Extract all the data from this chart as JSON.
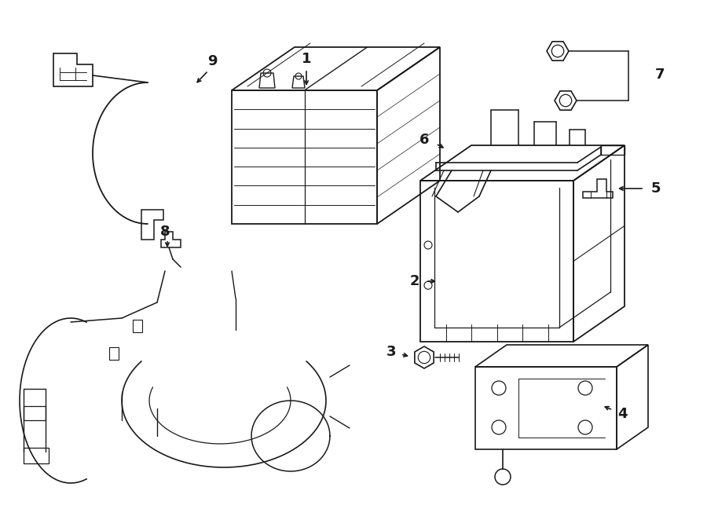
{
  "background_color": "#ffffff",
  "line_color": "#1a1a1a",
  "figsize": [
    9.0,
    6.62
  ],
  "dpi": 100,
  "xlim": [
    0,
    900
  ],
  "ylim": [
    0,
    662
  ]
}
